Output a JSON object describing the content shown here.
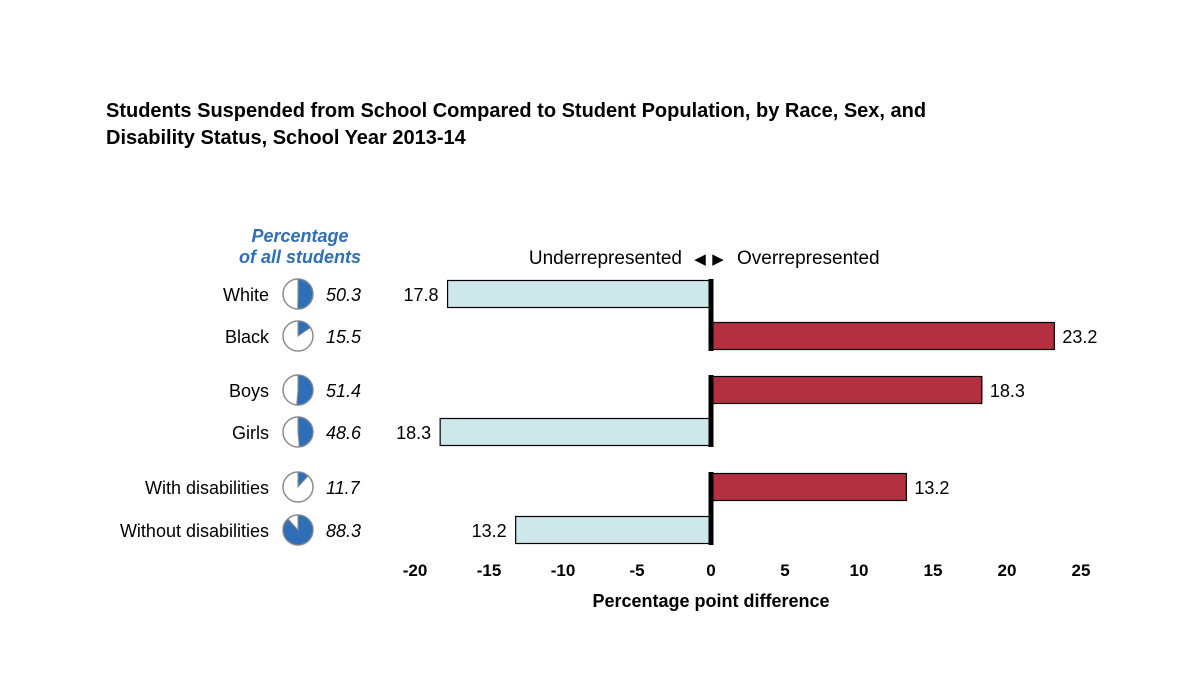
{
  "chart_data": {
    "type": "bar",
    "title": "Students Suspended from School Compared to Student Population, by Race, Sex, and\nDisability Status, School Year 2013-14",
    "pie_column_header": [
      "Percentage",
      "of all students"
    ],
    "direction_label": {
      "left": "Underrepresented",
      "right": "Overrepresented",
      "left_arrow": "◀",
      "right_arrow": "▶"
    },
    "xlabel": "Percentage point difference",
    "xlim": [
      -20,
      25
    ],
    "xticks": [
      "-20",
      "-15",
      "-10",
      "-5",
      "0",
      "5",
      "10",
      "15",
      "20",
      "25"
    ],
    "grid": false,
    "groups": [
      {
        "rows": [
          {
            "category": "White",
            "population_percent": 50.3,
            "population_label": "50.3",
            "difference": -17.8,
            "value_label": "17.8"
          },
          {
            "category": "Black",
            "population_percent": 15.5,
            "population_label": "15.5",
            "difference": 23.2,
            "value_label": "23.2"
          }
        ]
      },
      {
        "rows": [
          {
            "category": "Boys",
            "population_percent": 51.4,
            "population_label": "51.4",
            "difference": 18.3,
            "value_label": "18.3"
          },
          {
            "category": "Girls",
            "population_percent": 48.6,
            "population_label": "48.6",
            "difference": -18.3,
            "value_label": "18.3"
          }
        ]
      },
      {
        "rows": [
          {
            "category": "With disabilities",
            "population_percent": 11.7,
            "population_label": "11.7",
            "difference": 13.2,
            "value_label": "13.2"
          },
          {
            "category": "Without disabilities",
            "population_percent": 88.3,
            "population_label": "88.3",
            "difference": -13.2,
            "value_label": "13.2"
          }
        ]
      }
    ],
    "colors": {
      "overrepresented": "#b33040",
      "underrepresented": "#cde7ea",
      "pie_fill": "#2f6fb7",
      "pie_header": "#2f6fb7",
      "bar_outline": "#000000",
      "zero_line": "#000000"
    }
  }
}
